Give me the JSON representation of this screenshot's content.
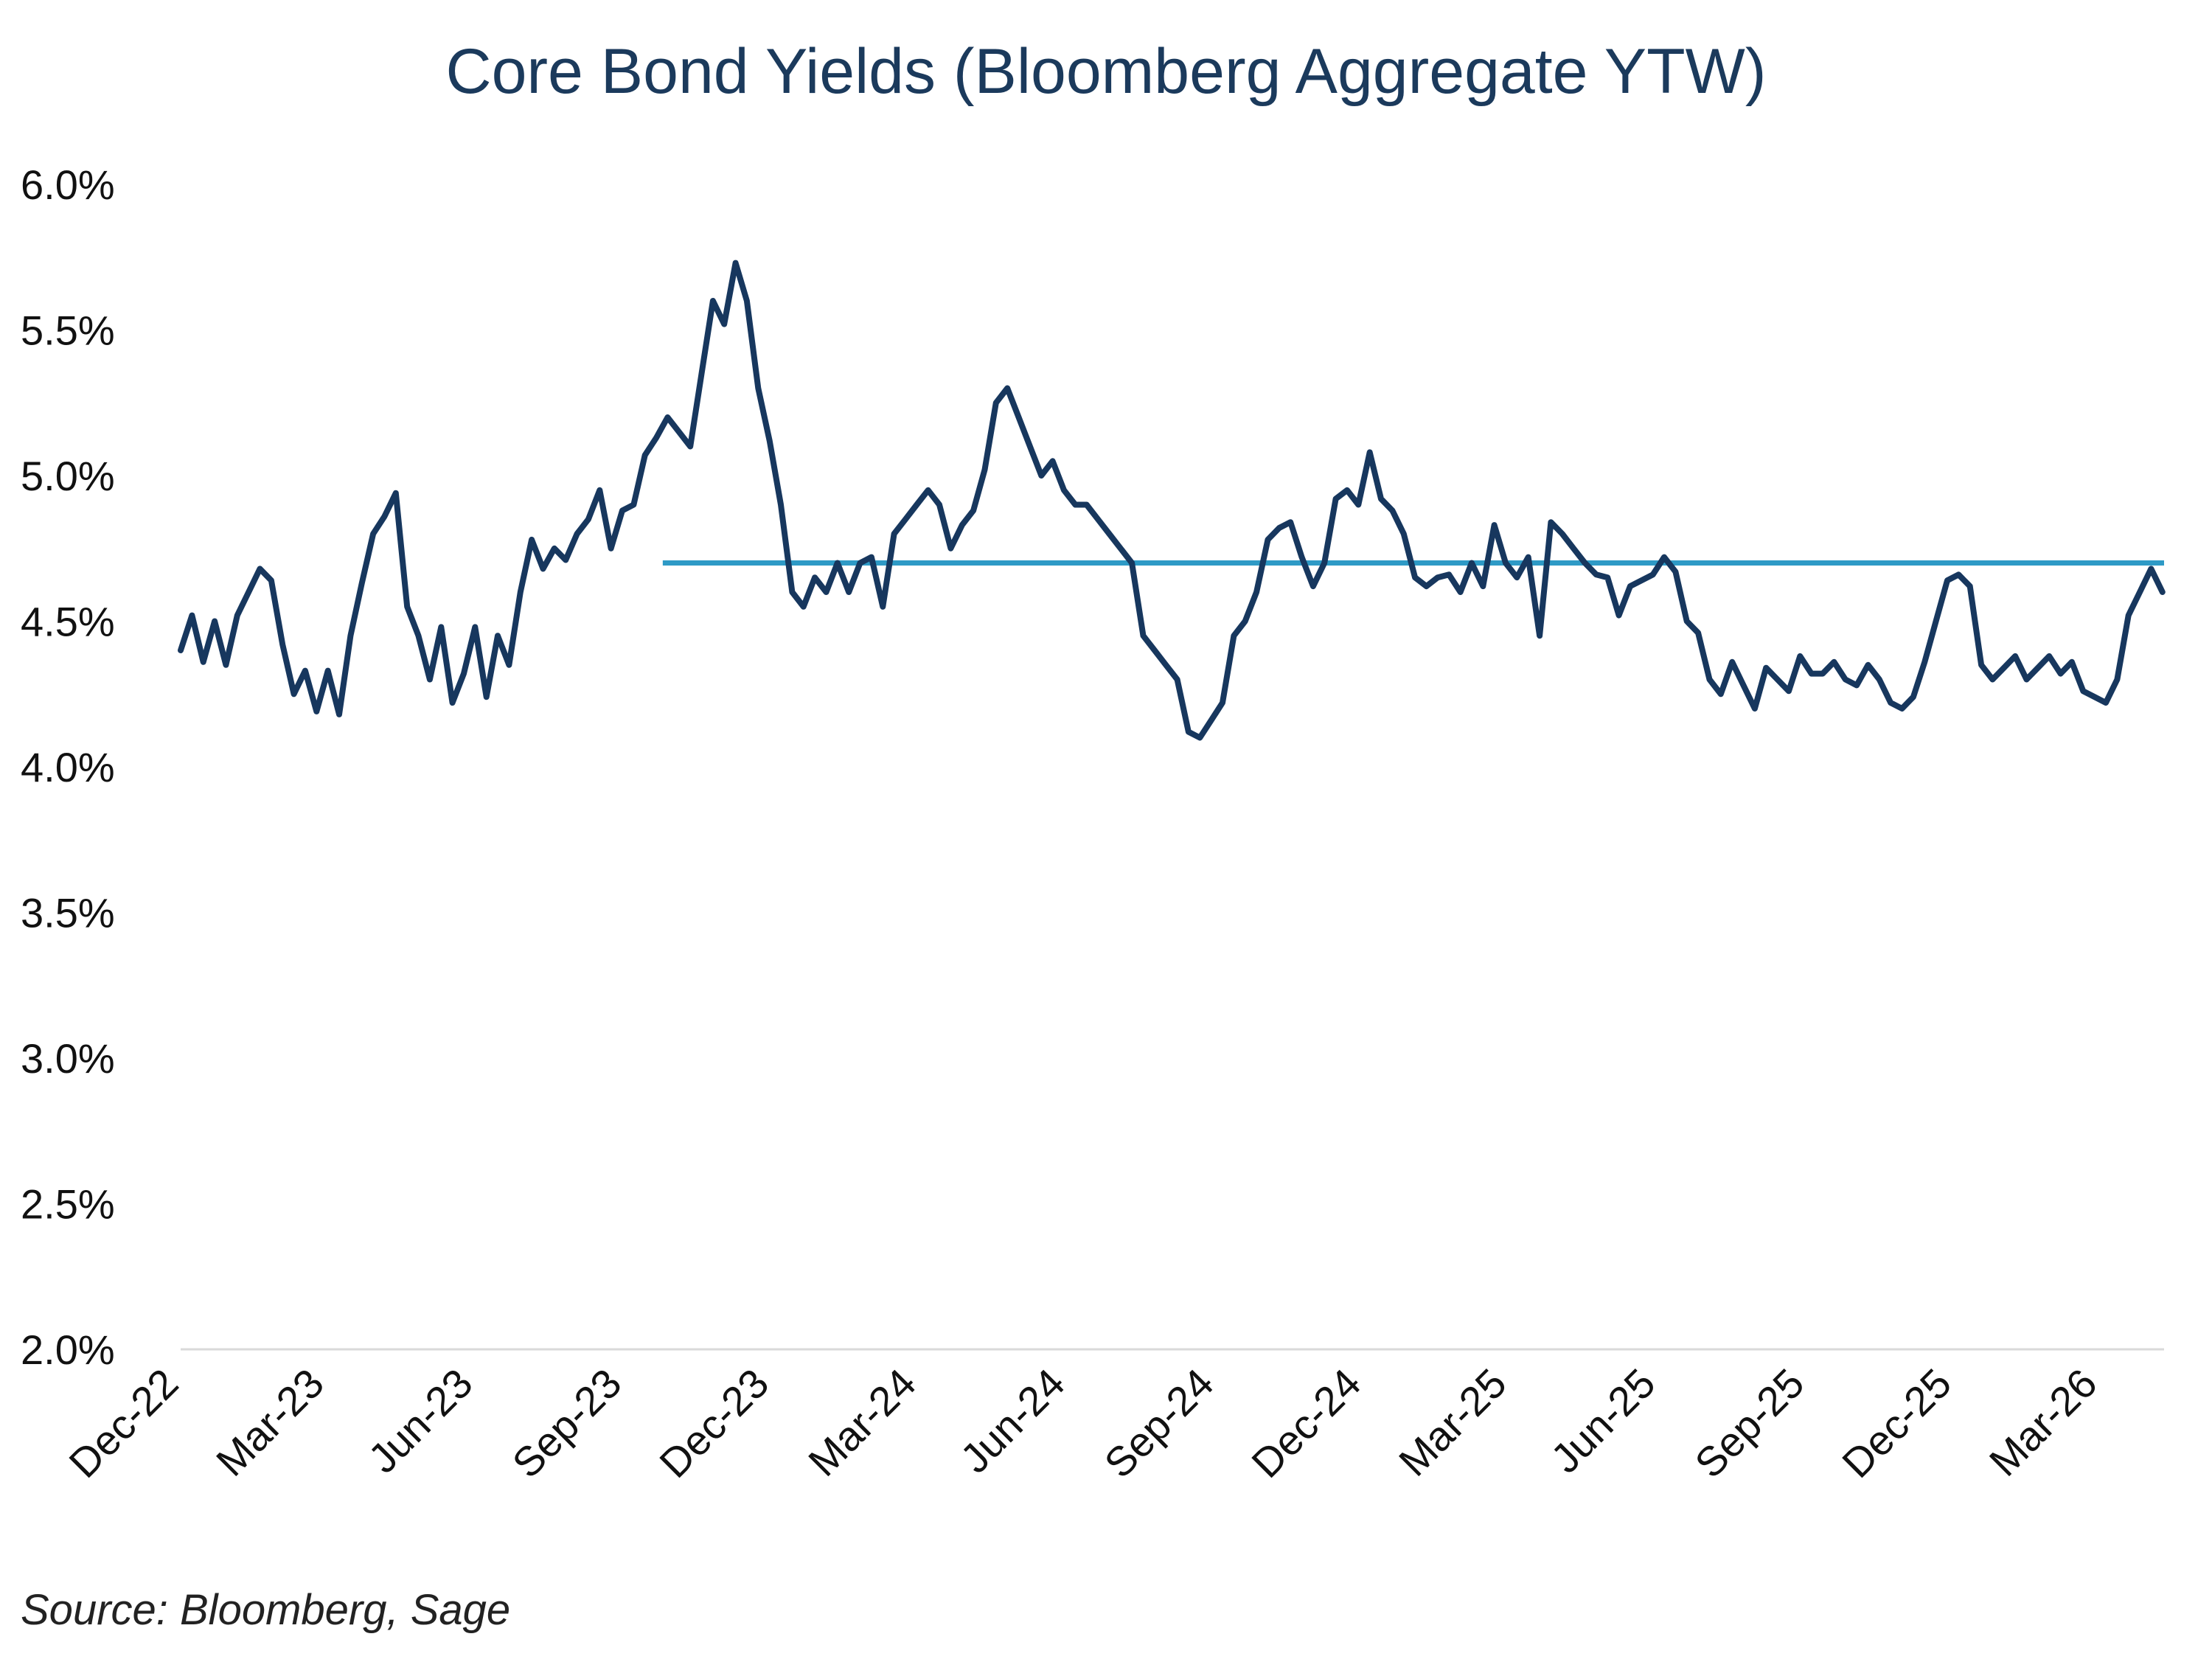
{
  "chart_data": {
    "type": "line",
    "title": "Core Bond Yields (Bloomberg Aggregate YTW)",
    "xlabel": "",
    "ylabel": "",
    "source": "Source: Bloomberg, Sage",
    "ylim": [
      2.0,
      6.0
    ],
    "xlim": [
      "2022-12-01",
      "2026-04-10"
    ],
    "y_ticks": [
      "6.0%",
      "5.5%",
      "5.0%",
      "4.5%",
      "4.0%",
      "3.5%",
      "3.0%",
      "2.5%",
      "2.0%"
    ],
    "y_tick_values": [
      6.0,
      5.5,
      5.0,
      4.5,
      4.0,
      3.5,
      3.0,
      2.5,
      2.0
    ],
    "x_ticks": [
      "Dec-22",
      "Mar-23",
      "Jun-23",
      "Sep-23",
      "Dec-23",
      "Mar-24",
      "Jun-24",
      "Sep-24",
      "Dec-24",
      "Mar-25",
      "Jun-25",
      "Sep-25",
      "Dec-25",
      "Mar-26"
    ],
    "x_tick_dates": [
      "2022-12-01",
      "2023-03-01",
      "2023-06-01",
      "2023-09-01",
      "2023-12-01",
      "2024-03-01",
      "2024-06-01",
      "2024-09-01",
      "2024-12-01",
      "2025-03-01",
      "2025-06-01",
      "2025-09-01",
      "2025-12-01",
      "2026-03-01"
    ],
    "grid": false,
    "legend": "none",
    "colors": {
      "series": "#17375e",
      "reference": "#2e9ac6",
      "title": "#1b3a5c",
      "axis": "#d9d9d9"
    },
    "series": [
      {
        "x": [
          "2022-12-01",
          "2022-12-08",
          "2022-12-15",
          "2022-12-22",
          "2022-12-29",
          "2023-01-05",
          "2023-01-12",
          "2023-01-19",
          "2023-01-26",
          "2023-02-02",
          "2023-02-09",
          "2023-02-16",
          "2023-02-23",
          "2023-03-02",
          "2023-03-09",
          "2023-03-16",
          "2023-03-23",
          "2023-03-30",
          "2023-04-06",
          "2023-04-13",
          "2023-04-20",
          "2023-04-27",
          "2023-05-04",
          "2023-05-11",
          "2023-05-18",
          "2023-05-25",
          "2023-06-01",
          "2023-06-08",
          "2023-06-15",
          "2023-06-22",
          "2023-06-29",
          "2023-07-06",
          "2023-07-13",
          "2023-07-20",
          "2023-07-27",
          "2023-08-03",
          "2023-08-10",
          "2023-08-17",
          "2023-08-24",
          "2023-08-31",
          "2023-09-07",
          "2023-09-14",
          "2023-09-21",
          "2023-09-28",
          "2023-10-05",
          "2023-10-12",
          "2023-10-19",
          "2023-10-26",
          "2023-11-02",
          "2023-11-09",
          "2023-11-16",
          "2023-11-23",
          "2023-11-30",
          "2023-12-07",
          "2023-12-14",
          "2023-12-21",
          "2023-12-28",
          "2024-01-04",
          "2024-01-11",
          "2024-01-18",
          "2024-01-25",
          "2024-02-01",
          "2024-02-08",
          "2024-02-15",
          "2024-02-22",
          "2024-02-29",
          "2024-03-07",
          "2024-03-14",
          "2024-03-21",
          "2024-03-28",
          "2024-04-04",
          "2024-04-11",
          "2024-04-18",
          "2024-04-25",
          "2024-05-02",
          "2024-05-09",
          "2024-05-16",
          "2024-05-23",
          "2024-05-30",
          "2024-06-06",
          "2024-06-13",
          "2024-06-20",
          "2024-06-27",
          "2024-07-04",
          "2024-07-11",
          "2024-07-18",
          "2024-07-25",
          "2024-08-01",
          "2024-08-08",
          "2024-08-15",
          "2024-08-22",
          "2024-08-29",
          "2024-09-05",
          "2024-09-12",
          "2024-09-19",
          "2024-09-26",
          "2024-10-03",
          "2024-10-10",
          "2024-10-17",
          "2024-10-24",
          "2024-10-31",
          "2024-11-07",
          "2024-11-14",
          "2024-11-21",
          "2024-11-28",
          "2024-12-05",
          "2024-12-12",
          "2024-12-19",
          "2024-12-26",
          "2025-01-02",
          "2025-01-09",
          "2025-01-16",
          "2025-01-23",
          "2025-01-30",
          "2025-02-06",
          "2025-02-13",
          "2025-02-20",
          "2025-02-27",
          "2025-03-06",
          "2025-03-13",
          "2025-03-20",
          "2025-03-27",
          "2025-04-03",
          "2025-04-10",
          "2025-04-17",
          "2025-04-24",
          "2025-05-01",
          "2025-05-08",
          "2025-05-15",
          "2025-05-22",
          "2025-05-29",
          "2025-06-05",
          "2025-06-12",
          "2025-06-19",
          "2025-06-26",
          "2025-07-03",
          "2025-07-10",
          "2025-07-17",
          "2025-07-24",
          "2025-07-31",
          "2025-08-07",
          "2025-08-14",
          "2025-08-21",
          "2025-08-28",
          "2025-09-04",
          "2025-09-11",
          "2025-09-18",
          "2025-09-25",
          "2025-10-02",
          "2025-10-09",
          "2025-10-16",
          "2025-10-23",
          "2025-10-30",
          "2025-11-06",
          "2025-11-13",
          "2025-11-20",
          "2025-11-27",
          "2025-12-04",
          "2025-12-11",
          "2025-12-18",
          "2025-12-25",
          "2026-01-01",
          "2026-01-08",
          "2026-01-15",
          "2026-01-22",
          "2026-01-29",
          "2026-02-05",
          "2026-02-12",
          "2026-02-19",
          "2026-02-26",
          "2026-03-05",
          "2026-03-12",
          "2026-03-19",
          "2026-03-26",
          "2026-04-02",
          "2026-04-09"
        ],
        "values": [
          4.4,
          4.52,
          4.36,
          4.5,
          4.35,
          4.52,
          4.6,
          4.68,
          4.64,
          4.42,
          4.25,
          4.33,
          4.19,
          4.33,
          4.18,
          4.45,
          4.63,
          4.8,
          4.86,
          4.94,
          4.55,
          4.45,
          4.3,
          4.48,
          4.22,
          4.32,
          4.48,
          4.24,
          4.45,
          4.35,
          4.6,
          4.78,
          4.68,
          4.75,
          4.71,
          4.8,
          4.85,
          4.95,
          4.75,
          4.88,
          4.9,
          5.07,
          5.13,
          5.2,
          5.15,
          5.1,
          5.35,
          5.6,
          5.52,
          5.73,
          5.6,
          5.3,
          5.12,
          4.9,
          4.6,
          4.55,
          4.65,
          4.6,
          4.7,
          4.6,
          4.7,
          4.72,
          4.55,
          4.8,
          4.85,
          4.9,
          4.95,
          4.9,
          4.75,
          4.83,
          4.88,
          5.02,
          5.25,
          5.3,
          5.2,
          5.1,
          5.0,
          5.05,
          4.95,
          4.9,
          4.9,
          4.85,
          4.8,
          4.75,
          4.7,
          4.45,
          4.4,
          4.35,
          4.3,
          4.12,
          4.1,
          4.16,
          4.22,
          4.45,
          4.5,
          4.6,
          4.78,
          4.82,
          4.84,
          4.72,
          4.62,
          4.7,
          4.92,
          4.95,
          4.9,
          5.08,
          4.92,
          4.88,
          4.8,
          4.65,
          4.62,
          4.65,
          4.66,
          4.6,
          4.7,
          4.62,
          4.83,
          4.7,
          4.65,
          4.72,
          4.45,
          4.84,
          4.8,
          4.75,
          4.7,
          4.66,
          4.65,
          4.52,
          4.62,
          4.64,
          4.66,
          4.72,
          4.67,
          4.5,
          4.46,
          4.3,
          4.25,
          4.36,
          4.28,
          4.2,
          4.34,
          4.3,
          4.26,
          4.38,
          4.32,
          4.32,
          4.36,
          4.3,
          4.28,
          4.35,
          4.3,
          4.22,
          4.2,
          4.24,
          4.36,
          4.5,
          4.64,
          4.66,
          4.62,
          4.35,
          4.3,
          4.34,
          4.38,
          4.3,
          4.34,
          4.38,
          4.32,
          4.36,
          4.26,
          4.24,
          4.22,
          4.3,
          4.52,
          4.6,
          4.68,
          4.6
        ]
      }
    ],
    "reference_line": {
      "y": 4.7,
      "x_start": "2023-09-25",
      "x_end": "2026-04-10"
    }
  }
}
